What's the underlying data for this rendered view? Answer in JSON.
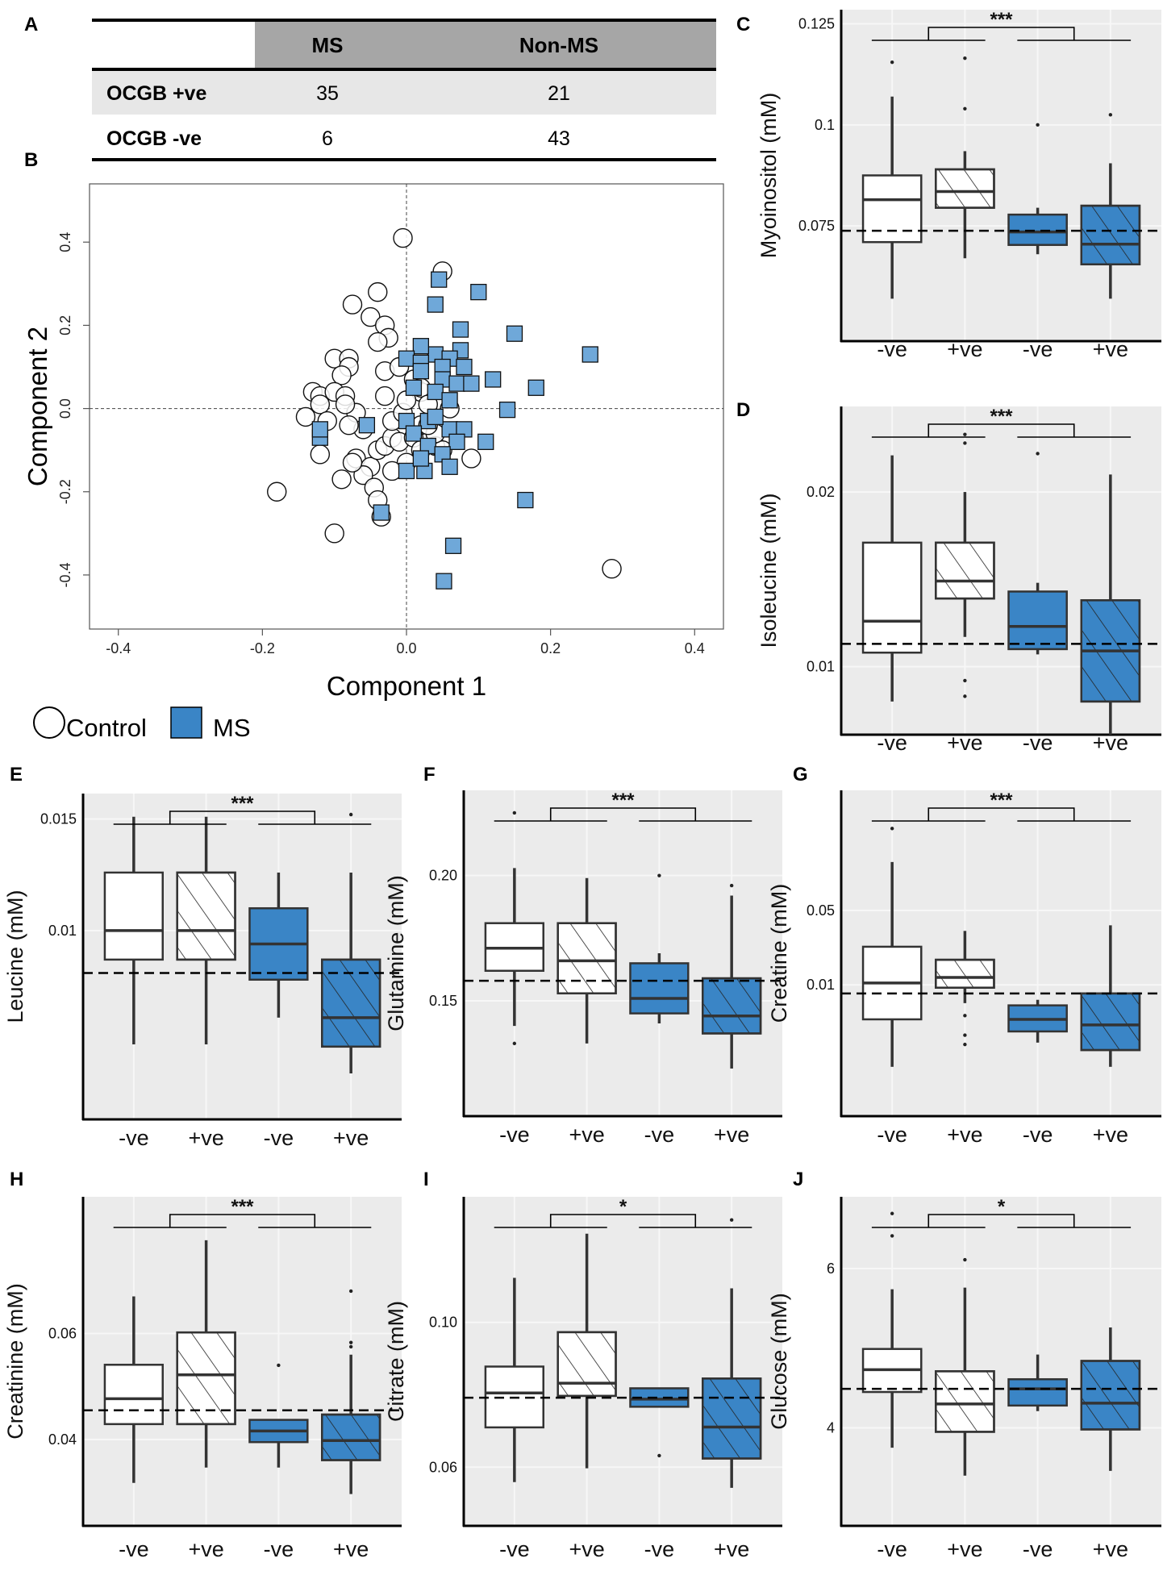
{
  "panel_labels": {
    "A": "A",
    "B": "B",
    "C": "C",
    "D": "D",
    "E": "E",
    "F": "F",
    "G": "G",
    "H": "H",
    "I": "I",
    "J": "J"
  },
  "colors": {
    "ms": "#3a85c6",
    "ms_light": "#6fa8d9",
    "control": "#ffffff",
    "panel_bg": "#ebebeb",
    "grid": "#f7f7f7",
    "table_header": "#a6a6a6",
    "table_row": "#e7e7e7"
  },
  "table": {
    "columns": [
      "",
      "MS",
      "Non-MS"
    ],
    "rows": [
      {
        "label": "OCGB +ve",
        "ms": "35",
        "nonms": "21"
      },
      {
        "label": "OCGB -ve",
        "ms": "6",
        "nonms": "43"
      }
    ]
  },
  "legend": {
    "control": "Control",
    "ms": "MS"
  },
  "chart_data": [
    {
      "id": "B",
      "type": "scatter",
      "title": "",
      "xlabel": "Component 1",
      "ylabel": "Component 2",
      "xlim": [
        -0.44,
        0.44
      ],
      "ylim": [
        -0.53,
        0.54
      ],
      "xticks": [
        "-0.4",
        "-0.2",
        "0.0",
        "0.2",
        "0.4"
      ],
      "xtick_values": [
        -0.4,
        -0.2,
        0.0,
        0.2,
        0.4
      ],
      "yticks": [
        "0.4",
        "0.2",
        "0.0",
        "-0.2",
        "-0.4"
      ],
      "ytick_values": [
        0.4,
        0.2,
        0.0,
        -0.2,
        -0.4
      ],
      "series": [
        {
          "name": "Control",
          "marker": "circle",
          "points": [
            [
              -0.005,
              0.41
            ],
            [
              0.05,
              0.33
            ],
            [
              -0.04,
              0.28
            ],
            [
              -0.075,
              0.25
            ],
            [
              -0.05,
              0.22
            ],
            [
              -0.03,
              0.2
            ],
            [
              -0.025,
              0.17
            ],
            [
              -0.04,
              0.16
            ],
            [
              -0.1,
              0.12
            ],
            [
              -0.08,
              0.12
            ],
            [
              -0.08,
              0.1
            ],
            [
              -0.09,
              0.08
            ],
            [
              -0.13,
              0.04
            ],
            [
              -0.12,
              0.03
            ],
            [
              -0.1,
              0.04
            ],
            [
              -0.085,
              0.03
            ],
            [
              -0.12,
              0.01
            ],
            [
              -0.14,
              -0.02
            ],
            [
              -0.11,
              -0.03
            ],
            [
              -0.07,
              -0.01
            ],
            [
              -0.06,
              -0.05
            ],
            [
              -0.08,
              -0.04
            ],
            [
              -0.12,
              -0.11
            ],
            [
              -0.07,
              -0.12
            ],
            [
              -0.05,
              -0.14
            ],
            [
              -0.04,
              -0.1
            ],
            [
              -0.03,
              -0.09
            ],
            [
              -0.02,
              -0.07
            ],
            [
              -0.01,
              -0.08
            ],
            [
              -0.02,
              -0.03
            ],
            [
              -0.005,
              -0.01
            ],
            [
              0.02,
              0.04
            ],
            [
              0.01,
              0.07
            ],
            [
              0.02,
              0.05
            ],
            [
              -0.03,
              0.09
            ],
            [
              -0.01,
              0.1
            ],
            [
              0.0,
              0.02
            ],
            [
              0.02,
              -0.04
            ],
            [
              0.01,
              -0.07
            ],
            [
              0.0,
              -0.13
            ],
            [
              -0.02,
              -0.15
            ],
            [
              -0.06,
              -0.16
            ],
            [
              -0.09,
              -0.17
            ],
            [
              -0.045,
              -0.19
            ],
            [
              -0.04,
              -0.22
            ],
            [
              -0.035,
              -0.26
            ],
            [
              0.04,
              -0.09
            ],
            [
              0.05,
              -0.1
            ],
            [
              0.09,
              -0.12
            ],
            [
              0.04,
              -0.06
            ],
            [
              0.06,
              0.0
            ],
            [
              0.03,
              -0.04
            ],
            [
              -0.03,
              0.03
            ],
            [
              -0.085,
              0.01
            ],
            [
              -0.075,
              -0.13
            ],
            [
              -0.18,
              -0.2
            ],
            [
              -0.1,
              -0.3
            ],
            [
              0.285,
              -0.385
            ],
            [
              0.02,
              -0.1
            ],
            [
              0.03,
              0.01
            ]
          ]
        },
        {
          "name": "MS",
          "marker": "square",
          "points": [
            [
              0.045,
              0.31
            ],
            [
              0.1,
              0.28
            ],
            [
              0.04,
              0.25
            ],
            [
              0.255,
              0.13
            ],
            [
              0.15,
              0.18
            ],
            [
              0.075,
              0.19
            ],
            [
              0.075,
              0.14
            ],
            [
              0.04,
              0.13
            ],
            [
              0.02,
              0.15
            ],
            [
              0.0,
              0.12
            ],
            [
              0.02,
              0.11
            ],
            [
              0.06,
              0.12
            ],
            [
              0.05,
              0.1
            ],
            [
              0.02,
              0.09
            ],
            [
              0.08,
              0.1
            ],
            [
              0.12,
              0.07
            ],
            [
              0.05,
              0.07
            ],
            [
              0.07,
              0.06
            ],
            [
              0.09,
              0.06
            ],
            [
              0.18,
              0.05
            ],
            [
              0.01,
              0.05
            ],
            [
              0.04,
              0.04
            ],
            [
              0.06,
              0.02
            ],
            [
              0.14,
              -0.003
            ],
            [
              0.0,
              -0.03
            ],
            [
              0.03,
              -0.03
            ],
            [
              -0.055,
              -0.04
            ],
            [
              0.06,
              -0.05
            ],
            [
              0.08,
              -0.05
            ],
            [
              0.01,
              -0.06
            ],
            [
              0.03,
              -0.09
            ],
            [
              0.07,
              -0.08
            ],
            [
              0.05,
              -0.11
            ],
            [
              0.11,
              -0.08
            ],
            [
              0.025,
              -0.15
            ],
            [
              0.0,
              -0.15
            ],
            [
              0.06,
              -0.14
            ],
            [
              -0.12,
              -0.07
            ],
            [
              -0.12,
              -0.05
            ],
            [
              -0.035,
              -0.25
            ],
            [
              0.165,
              -0.22
            ],
            [
              0.065,
              -0.33
            ],
            [
              0.052,
              -0.415
            ],
            [
              0.02,
              -0.12
            ],
            [
              0.04,
              -0.02
            ]
          ]
        }
      ]
    },
    {
      "id": "C",
      "type": "box",
      "ylabel": "Myoinositol (mM)",
      "categories": [
        "-ve",
        "+ve",
        "-ve",
        "+ve"
      ],
      "groups": [
        "Control",
        "Control",
        "MS",
        "MS"
      ],
      "ylim": [
        0.0465,
        0.1285
      ],
      "yticks": [
        "0.075",
        "0.1",
        "0.125"
      ],
      "ytick_values": [
        0.075,
        0.1,
        0.125
      ],
      "reference": 0.0738,
      "significance": "***",
      "boxes": [
        {
          "whislo": 0.057,
          "q1": 0.071,
          "med": 0.0815,
          "q3": 0.0875,
          "whishi": 0.107,
          "outliers": [
            0.1155
          ]
        },
        {
          "whislo": 0.067,
          "q1": 0.0795,
          "med": 0.0835,
          "q3": 0.089,
          "whishi": 0.0935,
          "outliers": [
            0.1165,
            0.104
          ]
        },
        {
          "whislo": 0.068,
          "q1": 0.0703,
          "med": 0.0735,
          "q3": 0.0778,
          "whishi": 0.0795,
          "outliers": [
            0.1
          ]
        },
        {
          "whislo": 0.057,
          "q1": 0.0655,
          "med": 0.0705,
          "q3": 0.08,
          "whishi": 0.0905,
          "outliers": [
            0.1025
          ]
        }
      ]
    },
    {
      "id": "D",
      "type": "box",
      "ylabel": "Isoleucine (mM)",
      "categories": [
        "-ve",
        "+ve",
        "-ve",
        "+ve"
      ],
      "groups": [
        "Control",
        "Control",
        "MS",
        "MS"
      ],
      "ylim": [
        0.0061,
        0.0249
      ],
      "yticks": [
        "0.01",
        "0.02"
      ],
      "ytick_values": [
        0.01,
        0.02
      ],
      "reference": 0.0113,
      "significance": "***",
      "boxes": [
        {
          "whislo": 0.008,
          "q1": 0.0108,
          "med": 0.0126,
          "q3": 0.0171,
          "whishi": 0.0221,
          "outliers": []
        },
        {
          "whislo": 0.0117,
          "q1": 0.0139,
          "med": 0.0149,
          "q3": 0.0171,
          "whishi": 0.02,
          "outliers": [
            0.0233,
            0.0228,
            0.0092,
            0.0083
          ]
        },
        {
          "whislo": 0.0107,
          "q1": 0.011,
          "med": 0.0123,
          "q3": 0.0143,
          "whishi": 0.0148,
          "outliers": [
            0.0222
          ]
        },
        {
          "whislo": 0.0061,
          "q1": 0.008,
          "med": 0.0109,
          "q3": 0.0138,
          "whishi": 0.021,
          "outliers": []
        }
      ]
    },
    {
      "id": "E",
      "type": "box",
      "ylabel": "Leucine (mM)",
      "categories": [
        "-ve",
        "+ve",
        "-ve",
        "+ve"
      ],
      "groups": [
        "Control",
        "Control",
        "MS",
        "MS"
      ],
      "ylim": [
        0.00154,
        0.01614
      ],
      "yticks": [
        "0.01",
        "0.015"
      ],
      "ytick_values": [
        0.01,
        0.015
      ],
      "reference": 0.0081,
      "significance": "***",
      "boxes": [
        {
          "whislo": 0.0049,
          "q1": 0.0087,
          "med": 0.01,
          "q3": 0.0126,
          "whishi": 0.0151,
          "outliers": []
        },
        {
          "whislo": 0.0049,
          "q1": 0.0087,
          "med": 0.01,
          "q3": 0.0126,
          "whishi": 0.0151,
          "outliers": []
        },
        {
          "whislo": 0.0061,
          "q1": 0.0078,
          "med": 0.0094,
          "q3": 0.011,
          "whishi": 0.0126,
          "outliers": []
        },
        {
          "whislo": 0.0036,
          "q1": 0.0048,
          "med": 0.0061,
          "q3": 0.0087,
          "whishi": 0.0126,
          "outliers": [
            0.0152
          ]
        }
      ]
    },
    {
      "id": "F",
      "type": "box",
      "ylabel": "Glutamine (mM)",
      "categories": [
        "-ve",
        "+ve",
        "-ve",
        "+ve"
      ],
      "groups": [
        "Control",
        "Control",
        "MS",
        "MS"
      ],
      "ylim": [
        0.104,
        0.234
      ],
      "yticks": [
        "0.15",
        "0.20"
      ],
      "ytick_values": [
        0.15,
        0.2
      ],
      "reference": 0.158,
      "significance": "***",
      "boxes": [
        {
          "whislo": 0.14,
          "q1": 0.162,
          "med": 0.171,
          "q3": 0.181,
          "whishi": 0.203,
          "outliers": [
            0.133,
            0.225
          ]
        },
        {
          "whislo": 0.133,
          "q1": 0.153,
          "med": 0.166,
          "q3": 0.181,
          "whishi": 0.199,
          "outliers": []
        },
        {
          "whislo": 0.141,
          "q1": 0.145,
          "med": 0.151,
          "q3": 0.165,
          "whishi": 0.169,
          "outliers": [
            0.2
          ]
        },
        {
          "whislo": 0.123,
          "q1": 0.137,
          "med": 0.144,
          "q3": 0.159,
          "whishi": 0.192,
          "outliers": [
            0.196
          ]
        }
      ]
    },
    {
      "id": "G",
      "type": "box",
      "ylabel": "Creatine (mM)",
      "categories": [
        "-ve",
        "+ve",
        "-ve",
        "+ve"
      ],
      "groups": [
        "Control",
        "Control",
        "MS",
        "MS"
      ],
      "ylim": [
        -0.0605,
        0.1145
      ],
      "yticks": [
        "0.01",
        "0.05"
      ],
      "ytick_values": [
        0.01,
        0.05
      ],
      "reference": 0.0054,
      "significance": "***",
      "boxes": [
        {
          "whislo": -0.034,
          "q1": -0.0085,
          "med": 0.011,
          "q3": 0.0305,
          "whishi": 0.076,
          "outliers": [
            0.094
          ]
        },
        {
          "whislo": 0.0002,
          "q1": 0.0085,
          "med": 0.014,
          "q3": 0.0235,
          "whishi": 0.039,
          "outliers": [
            -0.0065,
            -0.017,
            -0.022
          ]
        },
        {
          "whislo": -0.021,
          "q1": -0.015,
          "med": -0.0085,
          "q3": -0.001,
          "whishi": 0.002,
          "outliers": []
        },
        {
          "whislo": -0.034,
          "q1": -0.025,
          "med": -0.0115,
          "q3": 0.0054,
          "whishi": 0.042,
          "outliers": []
        }
      ]
    },
    {
      "id": "H",
      "type": "box",
      "ylabel": "Creatinine (mM)",
      "categories": [
        "-ve",
        "+ve",
        "-ve",
        "+ve"
      ],
      "groups": [
        "Control",
        "Control",
        "MS",
        "MS"
      ],
      "ylim": [
        0.0237,
        0.0858
      ],
      "yticks": [
        "0.04",
        "0.06"
      ],
      "ytick_values": [
        0.04,
        0.06
      ],
      "reference": 0.0455,
      "significance": "***",
      "boxes": [
        {
          "whislo": 0.0318,
          "q1": 0.0429,
          "med": 0.0477,
          "q3": 0.0541,
          "whishi": 0.067,
          "outliers": []
        },
        {
          "whislo": 0.0347,
          "q1": 0.0429,
          "med": 0.0522,
          "q3": 0.0602,
          "whishi": 0.0776,
          "outliers": []
        },
        {
          "whislo": 0.0347,
          "q1": 0.0395,
          "med": 0.0416,
          "q3": 0.0437,
          "whishi": 0.0437,
          "outliers": [
            0.054
          ]
        },
        {
          "whislo": 0.0297,
          "q1": 0.0361,
          "med": 0.0398,
          "q3": 0.0447,
          "whishi": 0.056,
          "outliers": [
            0.068,
            0.0583,
            0.0575
          ]
        }
      ]
    },
    {
      "id": "I",
      "type": "box",
      "ylabel": "Citrate (mM)",
      "categories": [
        "-ve",
        "+ve",
        "-ve",
        "+ve"
      ],
      "groups": [
        "Control",
        "Control",
        "MS",
        "MS"
      ],
      "ylim": [
        0.0438,
        0.1347
      ],
      "yticks": [
        "0.06",
        "0.10"
      ],
      "ytick_values": [
        0.06,
        0.1
      ],
      "reference": 0.0792,
      "significance": "*",
      "boxes": [
        {
          "whislo": 0.0559,
          "q1": 0.071,
          "med": 0.0805,
          "q3": 0.0878,
          "whishi": 0.1123,
          "outliers": []
        },
        {
          "whislo": 0.0597,
          "q1": 0.0797,
          "med": 0.0832,
          "q3": 0.0973,
          "whishi": 0.1245,
          "outliers": []
        },
        {
          "whislo": 0.0767,
          "q1": 0.0767,
          "med": 0.0788,
          "q3": 0.0818,
          "whishi": 0.0818,
          "outliers": [
            0.0632
          ]
        },
        {
          "whislo": 0.0543,
          "q1": 0.0624,
          "med": 0.0711,
          "q3": 0.0845,
          "whishi": 0.1094,
          "outliers": [
            0.1283
          ]
        }
      ]
    },
    {
      "id": "J",
      "type": "box",
      "ylabel": "Glucose (mM)",
      "categories": [
        "-ve",
        "+ve",
        "-ve",
        "+ve"
      ],
      "groups": [
        "Control",
        "Control",
        "MS",
        "MS"
      ],
      "ylim": [
        2.77,
        6.9
      ],
      "yticks": [
        "4",
        "6"
      ],
      "ytick_values": [
        4,
        6
      ],
      "reference": 4.49,
      "significance": "*",
      "boxes": [
        {
          "whislo": 3.75,
          "q1": 4.45,
          "med": 4.73,
          "q3": 4.99,
          "whishi": 5.74,
          "outliers": [
            6.69,
            6.41
          ]
        },
        {
          "whislo": 3.4,
          "q1": 3.95,
          "med": 4.3,
          "q3": 4.71,
          "whishi": 5.76,
          "outliers": [
            6.11
          ]
        },
        {
          "whislo": 4.21,
          "q1": 4.28,
          "med": 4.49,
          "q3": 4.61,
          "whishi": 4.92,
          "outliers": []
        },
        {
          "whislo": 3.46,
          "q1": 3.98,
          "med": 4.31,
          "q3": 4.84,
          "whishi": 5.26,
          "outliers": []
        }
      ]
    }
  ]
}
